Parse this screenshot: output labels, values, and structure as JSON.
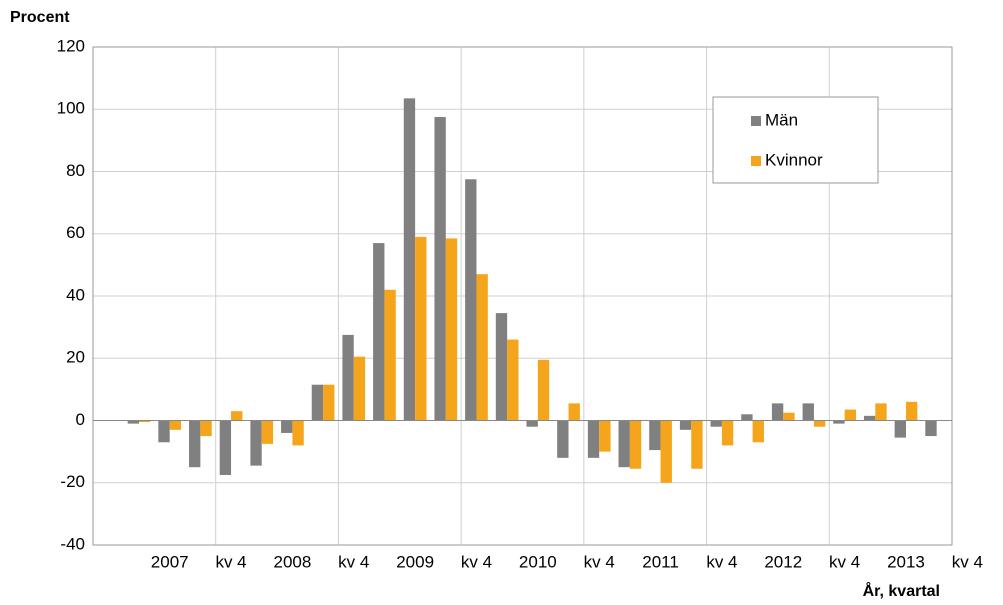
{
  "chart_data": {
    "type": "bar",
    "y_label": "Procent",
    "x_label": "År, kvartal",
    "categories": [
      null,
      "2007",
      null,
      "kv 4",
      null,
      "2008",
      null,
      "kv 4",
      null,
      "2009",
      null,
      "kv 4",
      null,
      "2010",
      null,
      "kv 4",
      null,
      "2011",
      null,
      "kv 4",
      null,
      "2012",
      null,
      "kv 4",
      null,
      "2013",
      null,
      "kv 4"
    ],
    "series": [
      {
        "name": "Män",
        "color": "#808080",
        "values": [
          null,
          -1,
          -7,
          -15,
          -17.5,
          -14.5,
          -4,
          11.5,
          27.5,
          57,
          103.5,
          97.5,
          77.5,
          34.5,
          -2,
          -12,
          -12,
          -15,
          -9.5,
          -3,
          -2,
          2,
          5.5,
          5.5,
          -1,
          1.5,
          -5.5,
          -5
        ]
      },
      {
        "name": "Kvinnor",
        "color": "#f5a51c",
        "values": [
          null,
          -0.5,
          -3,
          -5,
          3,
          -7.5,
          -8,
          11.5,
          20.5,
          42,
          59,
          58.5,
          47,
          26,
          19.5,
          5.5,
          -10,
          -15.5,
          -20,
          -15.5,
          -8,
          -7,
          2.5,
          -2,
          3.5,
          5.5,
          6,
          null
        ]
      }
    ],
    "ylim": [
      -40,
      120
    ],
    "yticks": [
      -40,
      -20,
      0,
      20,
      40,
      60,
      80,
      100,
      120
    ],
    "grid": true,
    "legend": "upper right"
  }
}
